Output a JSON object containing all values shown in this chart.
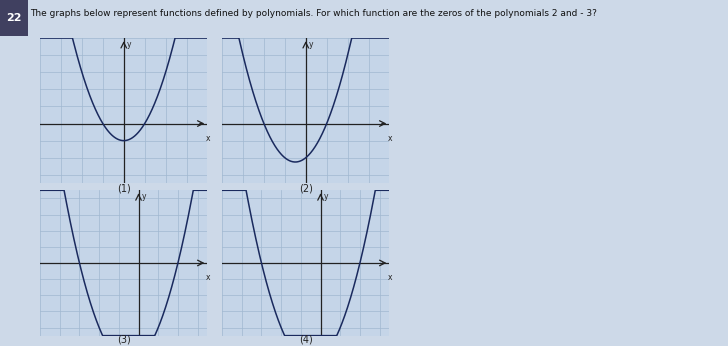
{
  "title": "The graphs below represent functions defined by polynomials. For which function are the zeros of the polynomials 2 and - 3?",
  "question_number": "22",
  "fig_bg": "#cdd9e8",
  "graph_bg": "#c5d5e8",
  "grid_color": "#a0b8d0",
  "axis_color": "#222222",
  "curve_color": "#1a2a5e",
  "graphs": [
    {
      "label": "(1)",
      "zeros": [
        -1,
        1
      ],
      "xlim": [
        -4,
        4
      ],
      "ylim": [
        -3.5,
        5
      ],
      "yaxis_at": 0
    },
    {
      "label": "(2)",
      "zeros": [
        -2,
        1
      ],
      "xlim": [
        -4,
        4
      ],
      "ylim": [
        -3.5,
        5
      ],
      "yaxis_at": 0
    },
    {
      "label": "(3)",
      "zeros": [
        -3,
        2
      ],
      "xlim": [
        -5,
        3
      ],
      "ylim": [
        -4,
        5
      ],
      "yaxis_at": 0
    },
    {
      "label": "(4)",
      "zeros": [
        -3,
        2
      ],
      "xlim": [
        -5,
        3
      ],
      "ylim": [
        -4,
        5
      ],
      "yaxis_at": 0
    }
  ]
}
